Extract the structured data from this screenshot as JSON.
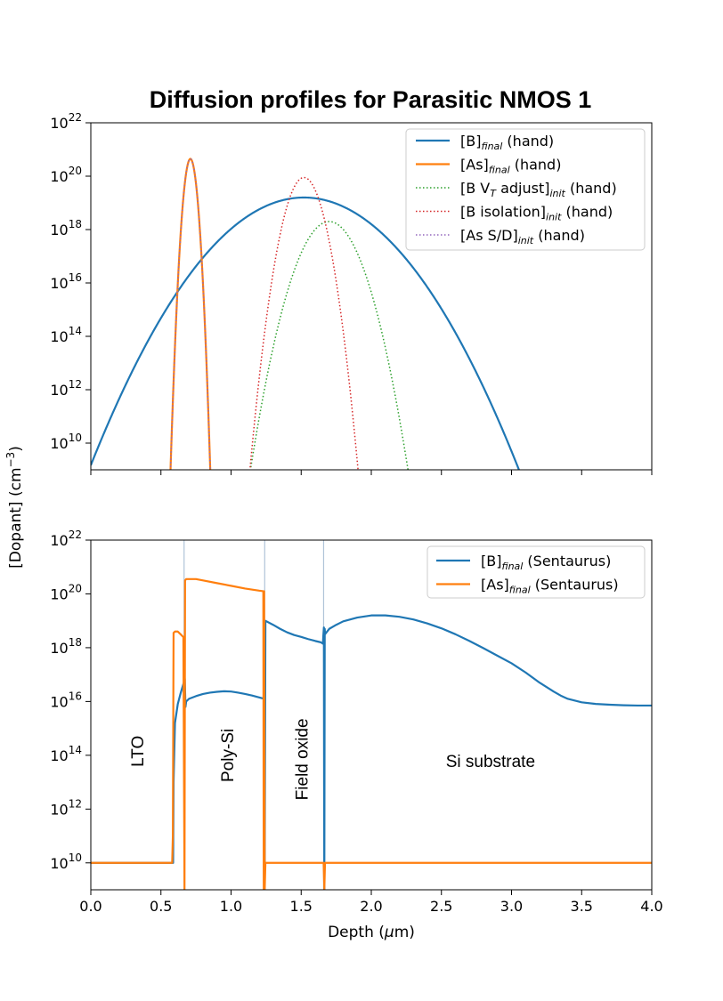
{
  "chart_data": [
    {
      "type": "line",
      "title": "Diffusion profiles for Parasitic NMOS 1",
      "xlabel": "",
      "ylabel": "",
      "xlim": [
        0.0,
        4.0
      ],
      "ylim_log10": [
        9,
        22
      ],
      "yscale": "log",
      "grid": false,
      "legend_position": "top-right",
      "yticks": [
        "10^10",
        "10^12",
        "10^14",
        "10^16",
        "10^18",
        "10^20",
        "10^22"
      ],
      "series": [
        {
          "name": "[B]_final (hand)",
          "base": "[B]",
          "sub": "final",
          "tail": " (hand)",
          "color": "#1f77b4",
          "style": "solid",
          "profile": {
            "peak_x": 1.52,
            "peak_log10": 19.2,
            "sigma": 0.48
          }
        },
        {
          "name": "[As]_final  (hand)",
          "base": "[As]",
          "sub": "final",
          "tail": "  (hand)",
          "color": "#ff7f0e",
          "style": "solid",
          "profile": {
            "peak_x": 0.71,
            "peak_log10": 20.65,
            "sigma": 0.0415
          }
        },
        {
          "name": "[B V_T adjust]_init (hand)",
          "base": "[B V",
          "base_sub": "T",
          "base_tail": " adjust]",
          "sub": "init",
          "tail": " (hand)",
          "color": "#2ca02c",
          "style": "dotted",
          "profile": {
            "peak_x": 1.7,
            "peak_log10": 18.3,
            "sigma": 0.1842
          }
        },
        {
          "name": "[B isolation]_init  (hand)",
          "base": "[B isolation]",
          "sub": "init",
          "tail": "  (hand)",
          "color": "#d62728",
          "style": "dotted",
          "profile": {
            "peak_x": 1.52,
            "peak_log10": 19.95,
            "sigma": 0.1165
          }
        },
        {
          "name": "[As S/D]_init  (hand)",
          "base": "[As S/D]",
          "sub": "init",
          "tail": "  (hand)",
          "color": "#9467bd",
          "style": "dotted",
          "profile": {
            "peak_x": 0.71,
            "peak_log10": 20.65,
            "sigma": 0.0415
          }
        }
      ]
    },
    {
      "type": "line",
      "xlabel": "Depth (μm)",
      "xlabel_base": "Depth (",
      "xlabel_mu": "μ",
      "xlabel_tail": "m)",
      "ylabel": "[Dopant] (cm⁻³)",
      "ylabel_base": "[Dopant] (cm",
      "ylabel_sup": "−3",
      "ylabel_tail": ")",
      "xlim": [
        0.0,
        4.0
      ],
      "ylim_log10": [
        9,
        22
      ],
      "yscale": "log",
      "grid": false,
      "legend_position": "top-right",
      "xticks": [
        "0.0",
        "0.5",
        "1.0",
        "1.5",
        "2.0",
        "2.5",
        "3.0",
        "3.5",
        "4.0"
      ],
      "xtick_values": [
        0.0,
        0.5,
        1.0,
        1.5,
        2.0,
        2.5,
        3.0,
        3.5,
        4.0
      ],
      "yticks": [
        "10^10",
        "10^12",
        "10^14",
        "10^16",
        "10^18",
        "10^20",
        "10^22"
      ],
      "interfaces": [
        0.665,
        1.24,
        1.66
      ],
      "regions": [
        {
          "label": "LTO",
          "x": 0.33,
          "log10": 14.15,
          "rotated": true
        },
        {
          "label": "Poly-Si",
          "x": 0.97,
          "log10": 14.0,
          "rotated": true
        },
        {
          "label": "Field oxide",
          "x": 1.5,
          "log10": 13.85,
          "rotated": true
        },
        {
          "label": "Si substrate",
          "x": 2.85,
          "log10": 13.8,
          "rotated": false
        }
      ],
      "series": [
        {
          "name": "[B]_final (Sentaurus)",
          "base": "[B]",
          "sub": "final",
          "tail": " (Sentaurus)",
          "color": "#1f77b4",
          "x": [
            0.0,
            0.587,
            0.59,
            0.6,
            0.62,
            0.64,
            0.66,
            0.67,
            0.675,
            0.68,
            0.7,
            0.75,
            0.8,
            0.85,
            0.9,
            0.95,
            1.0,
            1.05,
            1.1,
            1.15,
            1.2,
            1.235,
            1.24,
            1.245,
            1.3,
            1.35,
            1.4,
            1.45,
            1.5,
            1.55,
            1.6,
            1.64,
            1.655,
            1.658,
            1.662,
            1.665,
            1.668,
            1.67,
            1.7,
            1.75,
            1.8,
            1.9,
            2.0,
            2.1,
            2.2,
            2.3,
            2.4,
            2.5,
            2.6,
            2.7,
            2.8,
            2.9,
            3.0,
            3.1,
            3.2,
            3.3,
            3.35,
            3.4,
            3.5,
            3.6,
            3.7,
            3.8,
            3.9,
            4.0
          ],
          "log10": [
            10.0,
            10.0,
            13.0,
            15.2,
            15.9,
            16.3,
            16.65,
            16.85,
            15.8,
            16.0,
            16.1,
            16.2,
            16.28,
            16.33,
            16.36,
            16.38,
            16.37,
            16.33,
            16.28,
            16.22,
            16.15,
            16.1,
            10.0,
            19.0,
            18.85,
            18.7,
            18.57,
            18.47,
            18.4,
            18.32,
            18.25,
            18.2,
            18.15,
            18.45,
            18.75,
            9.0,
            18.7,
            18.5,
            18.7,
            18.85,
            18.98,
            19.12,
            19.2,
            19.2,
            19.15,
            19.05,
            18.9,
            18.72,
            18.5,
            18.25,
            17.98,
            17.7,
            17.42,
            17.08,
            16.7,
            16.37,
            16.22,
            16.1,
            15.97,
            15.91,
            15.88,
            15.86,
            15.85,
            15.85
          ]
        },
        {
          "name": "[As]_final (Sentaurus)",
          "base": "[As]",
          "sub": "final",
          "tail": " (Sentaurus)",
          "color": "#ff7f0e",
          "x": [
            0.0,
            0.58,
            0.585,
            0.59,
            0.6,
            0.62,
            0.64,
            0.655,
            0.66,
            0.668,
            0.672,
            0.68,
            0.7,
            0.75,
            0.8,
            0.9,
            1.0,
            1.1,
            1.2,
            1.23,
            1.233,
            1.236,
            1.24,
            1.245,
            1.3,
            1.5,
            1.66,
            1.665,
            1.67,
            1.675,
            1.7,
            2.0,
            3.0,
            4.0
          ],
          "log10": [
            10.0,
            10.0,
            11.0,
            18.55,
            18.6,
            18.6,
            18.5,
            18.42,
            18.4,
            9.0,
            20.5,
            20.55,
            20.55,
            20.55,
            20.5,
            20.4,
            20.3,
            20.2,
            20.12,
            20.1,
            9.0,
            20.1,
            9.0,
            10.0,
            10.0,
            10.0,
            10.0,
            9.0,
            10.0,
            10.0,
            10.0,
            10.0,
            10.0,
            10.0
          ]
        }
      ]
    }
  ]
}
